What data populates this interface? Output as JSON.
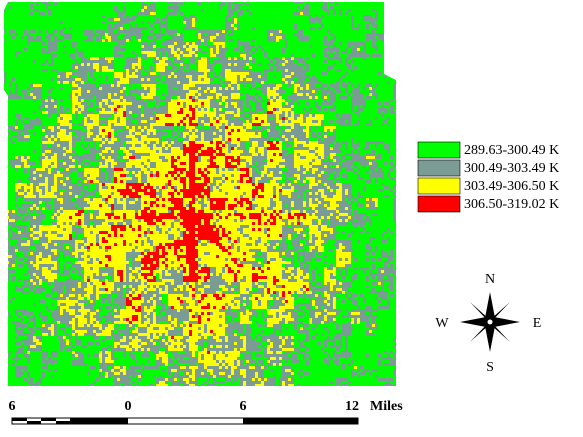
{
  "legend": {
    "items": [
      {
        "label": "289.63-300.49 K",
        "color": "#00ff00"
      },
      {
        "label": "300.49-303.49 K",
        "color": "#7a9c94"
      },
      {
        "label": "303.49-306.50 K",
        "color": "#ffff00"
      },
      {
        "label": "306.50-319.02 K",
        "color": "#ff0000"
      }
    ]
  },
  "compass": {
    "north": "N",
    "south": "S",
    "east": "E",
    "west": "W"
  },
  "scale_bar": {
    "labels": [
      "6",
      "0",
      "6",
      "12"
    ],
    "unit": "Miles"
  }
}
